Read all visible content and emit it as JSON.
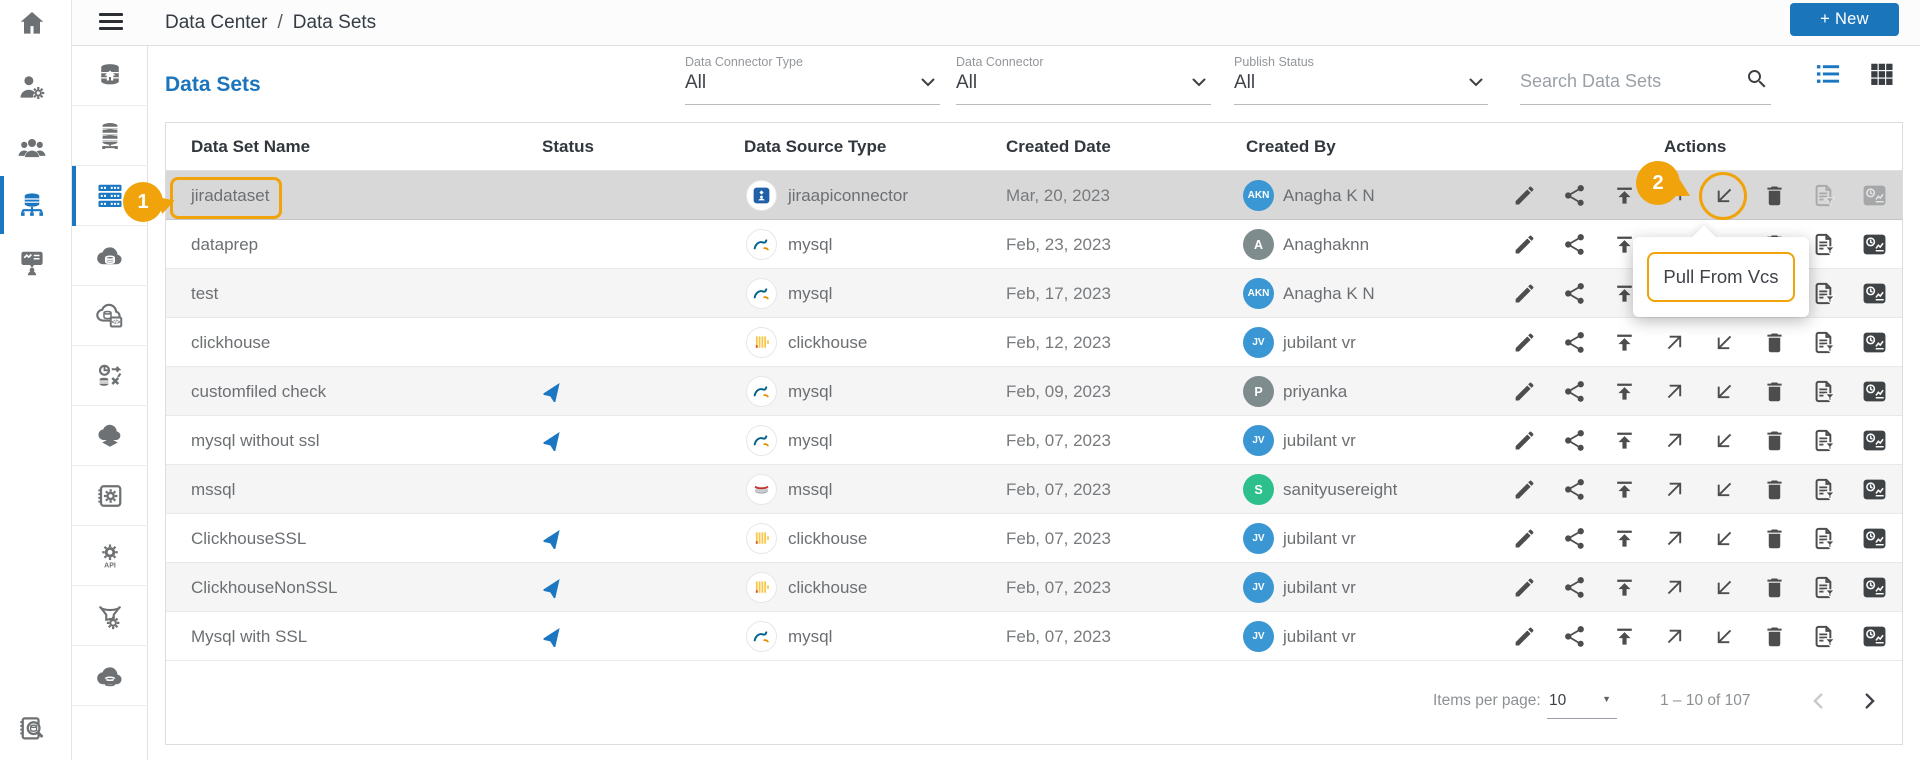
{
  "colors": {
    "accent_blue": "#1b77c2",
    "brand_blue": "#1c75bc",
    "annotation_orange": "#f0a30a",
    "selected_row_gray": "#d8d8d8",
    "stripe_row_gray": "#f5f5f6",
    "avatar_blue": "#3b97d3",
    "avatar_gray": "#7e8c8d",
    "avatar_green": "#2dc08d",
    "status_plane_blue": "#1b77c2"
  },
  "topbar": {
    "breadcrumb": [
      "Data Center",
      "Data Sets"
    ],
    "breadcrumb_separator": "/",
    "new_button_label": "+ New"
  },
  "sidebar": {
    "rail": [
      {
        "icon": "home-icon"
      },
      {
        "icon": "user-settings-icon"
      },
      {
        "icon": "user-group-icon"
      },
      {
        "icon": "database-network-icon",
        "active": true
      },
      {
        "icon": "dashboard-user-icon"
      }
    ],
    "rail_bottom": [
      {
        "icon": "database-search-icon"
      }
    ],
    "menu": [
      {
        "icon": "database-home-icon"
      },
      {
        "icon": "database-server-icon"
      },
      {
        "icon": "data-sets-icon",
        "active": true
      },
      {
        "icon": "cloud-database-icon"
      },
      {
        "icon": "cloud-database-code-icon"
      },
      {
        "icon": "data-sync-icon"
      },
      {
        "icon": "cloud-layer-icon"
      },
      {
        "icon": "database-gear-icon"
      },
      {
        "icon": "api-gear-icon"
      },
      {
        "icon": "funnel-gear-icon"
      },
      {
        "icon": "cloud-database2-icon"
      }
    ]
  },
  "page": {
    "title": "Data Sets"
  },
  "filters": [
    {
      "label": "Data Connector Type",
      "value": "All"
    },
    {
      "label": "Data Connector",
      "value": "All"
    },
    {
      "label": "Publish Status",
      "value": "All"
    }
  ],
  "search": {
    "placeholder": "Search Data Sets",
    "icon": "search-icon"
  },
  "view_toggle": {
    "list_icon": "list-view-icon",
    "grid_icon": "grid-view-icon",
    "active": "list"
  },
  "table": {
    "columns": [
      "Data Set Name",
      "Status",
      "Data Source Type",
      "Created Date",
      "Created By",
      "Actions"
    ],
    "actions": [
      {
        "name": "edit",
        "icon": "pencil-icon"
      },
      {
        "name": "share",
        "icon": "share-icon"
      },
      {
        "name": "publish",
        "icon": "publish-icon"
      },
      {
        "name": "push-to-vcs",
        "icon": "arrow-up-right-icon"
      },
      {
        "name": "pull-from-vcs",
        "icon": "arrow-down-left-icon"
      },
      {
        "name": "delete",
        "icon": "trash-icon"
      },
      {
        "name": "copy-with-filter",
        "icon": "document-filter-icon"
      },
      {
        "name": "usage-history",
        "icon": "time-chart-icon"
      }
    ],
    "rows": [
      {
        "name": "jiradataset",
        "published": false,
        "source_type": "jiraapiconnector",
        "source_icon": "jira-icon",
        "created_date": "Mar, 20, 2023",
        "created_by": "Anagha K N",
        "avatar": "AKN",
        "avatar_color": "#3b97d3",
        "selected": true,
        "disabled_actions": [
          "copy-with-filter",
          "usage-history"
        ]
      },
      {
        "name": "dataprep",
        "published": false,
        "source_type": "mysql",
        "source_icon": "mysql-icon",
        "created_date": "Feb, 23, 2023",
        "created_by": "Anaghaknn",
        "avatar": "A",
        "avatar_color": "#7e8c8d"
      },
      {
        "name": "test",
        "published": false,
        "source_type": "mysql",
        "source_icon": "mysql-icon",
        "created_date": "Feb, 17, 2023",
        "created_by": "Anagha K N",
        "avatar": "AKN",
        "avatar_color": "#3b97d3"
      },
      {
        "name": "clickhouse",
        "published": false,
        "source_type": "clickhouse",
        "source_icon": "clickhouse-icon",
        "created_date": "Feb, 12, 2023",
        "created_by": "jubilant vr",
        "avatar": "JV",
        "avatar_color": "#3b97d3"
      },
      {
        "name": "customfiled check",
        "published": true,
        "source_type": "mysql",
        "source_icon": "mysql-icon",
        "created_date": "Feb, 09, 2023",
        "created_by": "priyanka",
        "avatar": "P",
        "avatar_color": "#7e8c8d"
      },
      {
        "name": "mysql without ssl",
        "published": true,
        "source_type": "mysql",
        "source_icon": "mysql-icon",
        "created_date": "Feb, 07, 2023",
        "created_by": "jubilant vr",
        "avatar": "JV",
        "avatar_color": "#3b97d3"
      },
      {
        "name": "mssql",
        "published": false,
        "source_type": "mssql",
        "source_icon": "mssql-icon",
        "created_date": "Feb, 07, 2023",
        "created_by": "sanityusereight",
        "avatar": "S",
        "avatar_color": "#2dc08d"
      },
      {
        "name": "ClickhouseSSL",
        "published": true,
        "source_type": "clickhouse",
        "source_icon": "clickhouse-icon",
        "created_date": "Feb, 07, 2023",
        "created_by": "jubilant vr",
        "avatar": "JV",
        "avatar_color": "#3b97d3"
      },
      {
        "name": "ClickhouseNonSSL",
        "published": true,
        "source_type": "clickhouse",
        "source_icon": "clickhouse-icon",
        "created_date": "Feb, 07, 2023",
        "created_by": "jubilant vr",
        "avatar": "JV",
        "avatar_color": "#3b97d3"
      },
      {
        "name": "Mysql with SSL",
        "published": true,
        "source_type": "mysql",
        "source_icon": "mysql-icon",
        "created_date": "Feb, 07, 2023",
        "created_by": "jubilant vr",
        "avatar": "JV",
        "avatar_color": "#3b97d3"
      }
    ]
  },
  "annotations": {
    "step1": "1",
    "step2": "2",
    "tooltip": "Pull From Vcs"
  },
  "pagination": {
    "items_per_page_label": "Items per page:",
    "items_per_page": "10",
    "range": "1 – 10 of 107",
    "prev_icon": "chevron-left-icon",
    "next_icon": "chevron-right-icon"
  }
}
